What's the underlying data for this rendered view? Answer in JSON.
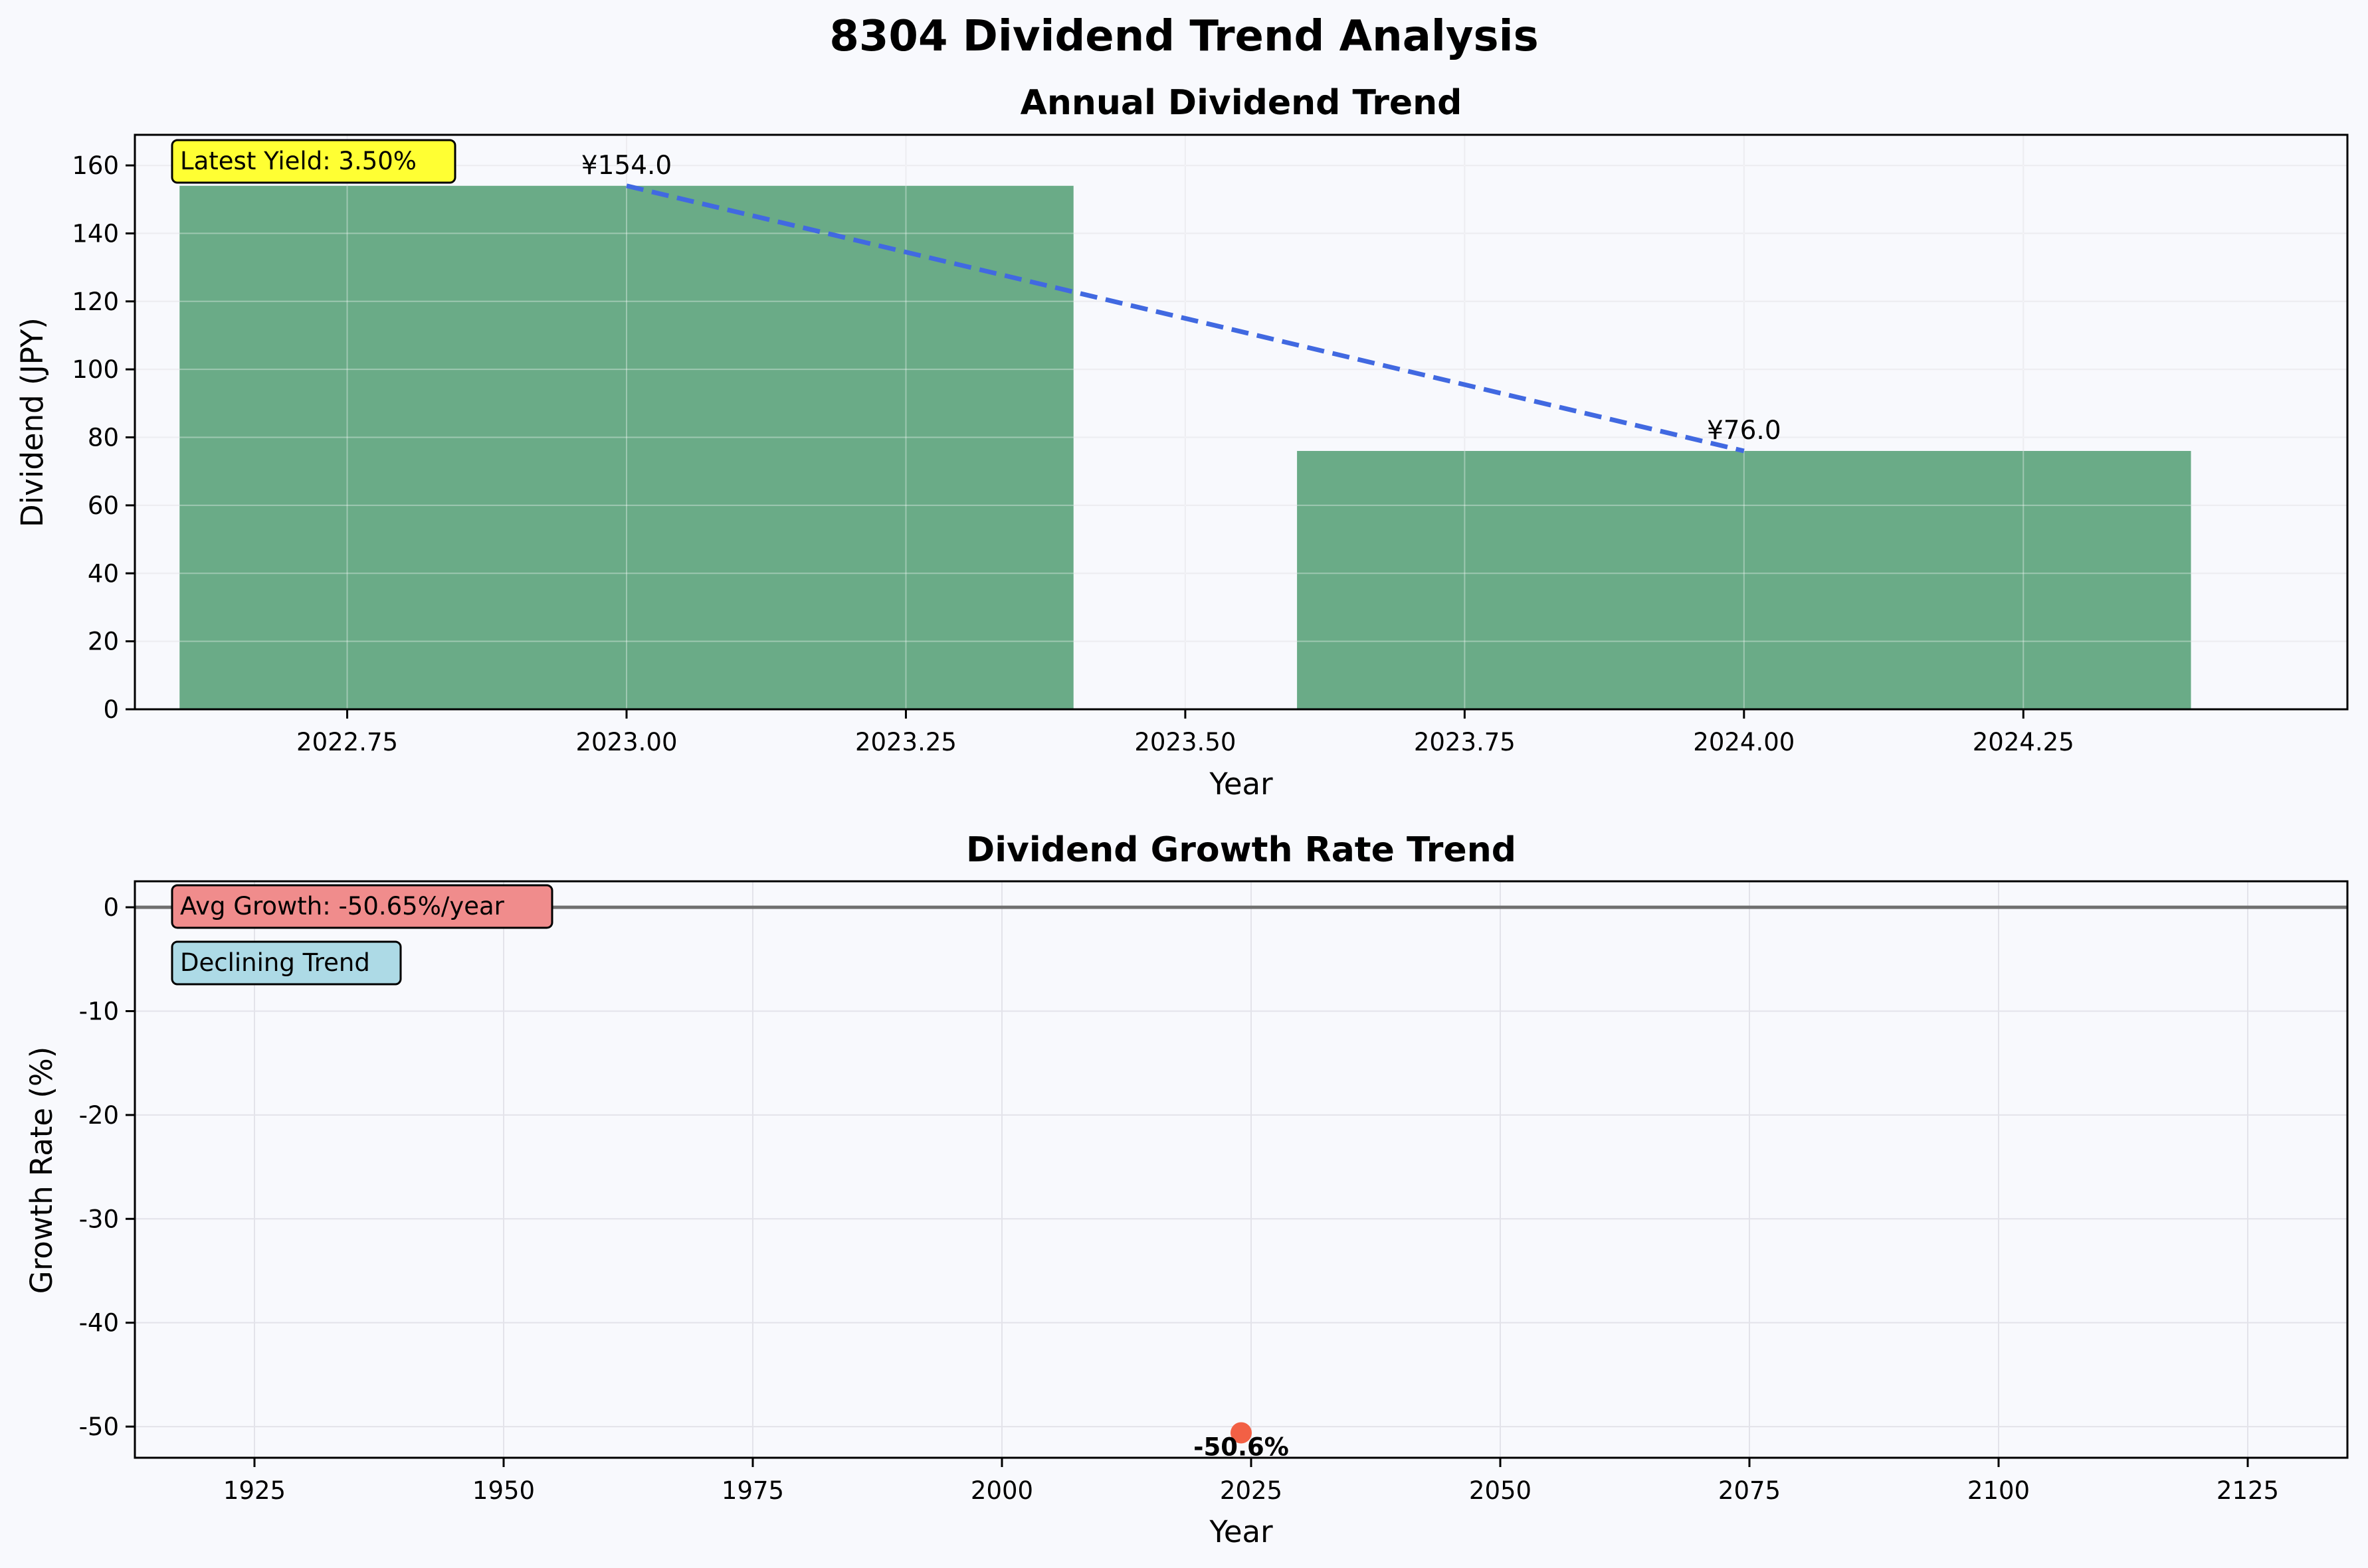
{
  "figure": {
    "suptitle": "8304 Dividend Trend Analysis"
  },
  "colors": {
    "background": "#f8f9fd",
    "bar": "#6aab87",
    "trend_line": "#4169e1",
    "growth_point": "#f26045",
    "zero_line": "#707070",
    "grid": "#e3e3ea",
    "yield_box": "#ffff33",
    "growth_box": "#f08c8c",
    "trend_box": "#addae6"
  },
  "chart_data": [
    {
      "type": "bar",
      "title": "Annual Dividend Trend",
      "xlabel": "Year",
      "ylabel": "Dividend (JPY)",
      "xlim": [
        2022.56,
        2024.54
      ],
      "ylim": [
        0,
        169
      ],
      "x_ticks": [
        2022.75,
        2023.0,
        2023.25,
        2023.5,
        2023.75,
        2024.0,
        2024.25
      ],
      "x_tick_labels": [
        "2022.75",
        "2023.00",
        "2023.25",
        "2023.50",
        "2023.75",
        "2024.00",
        "2024.25"
      ],
      "y_ticks": [
        0,
        20,
        40,
        60,
        80,
        100,
        120,
        140,
        160
      ],
      "y_tick_labels": [
        "0",
        "20",
        "40",
        "60",
        "80",
        "100",
        "120",
        "140",
        "160"
      ],
      "bar_width": 0.8,
      "x": [
        2023,
        2024
      ],
      "values": [
        154.0,
        76.0
      ],
      "data_labels": [
        "¥154.0",
        "¥76.0"
      ],
      "trend_line": {
        "style": "dashed",
        "x": [
          2023,
          2024
        ],
        "y": [
          154.0,
          76.0
        ]
      },
      "annotation": "Latest Yield: 3.50%",
      "grid": true
    },
    {
      "type": "scatter",
      "title": "Dividend Growth Rate Trend",
      "xlabel": "Year",
      "ylabel": "Growth Rate (%)",
      "xlim": [
        1913,
        2135
      ],
      "ylim": [
        -53,
        2.5
      ],
      "x_ticks": [
        1925,
        1950,
        1975,
        2000,
        2025,
        2050,
        2075,
        2100,
        2125
      ],
      "x_tick_labels": [
        "1925",
        "1950",
        "1975",
        "2000",
        "2025",
        "2050",
        "2075",
        "2100",
        "2125"
      ],
      "y_ticks": [
        0,
        -10,
        -20,
        -30,
        -40,
        -50
      ],
      "y_tick_labels": [
        "0",
        "-10",
        "-20",
        "-30",
        "-40",
        "-50"
      ],
      "x": [
        2024
      ],
      "values": [
        -50.6
      ],
      "data_labels": [
        "-50.6%"
      ],
      "reference_line": 0,
      "annotations": [
        "Avg Growth: -50.65%/year",
        "Declining Trend"
      ],
      "grid": true
    }
  ]
}
